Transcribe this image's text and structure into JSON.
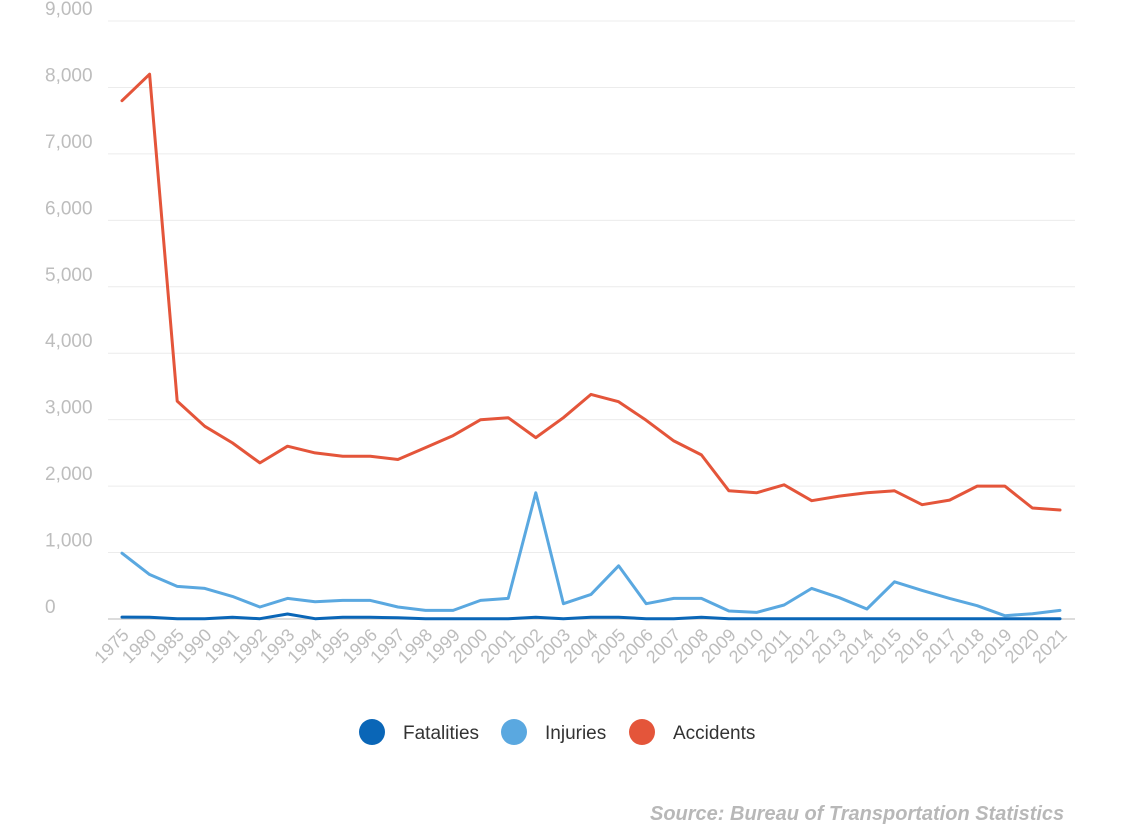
{
  "chart_data": {
    "type": "line",
    "x": [
      "1975",
      "1980",
      "1985",
      "1990",
      "1991",
      "1992",
      "1993",
      "1994",
      "1995",
      "1996",
      "1997",
      "1998",
      "1999",
      "2000",
      "2001",
      "2002",
      "2003",
      "2004",
      "2005",
      "2006",
      "2007",
      "2008",
      "2009",
      "2010",
      "2011",
      "2012",
      "2013",
      "2014",
      "2015",
      "2016",
      "2017",
      "2018",
      "2019",
      "2020",
      "2021"
    ],
    "series": [
      {
        "name": "Fatalities",
        "color": "#0a66b7",
        "values": [
          28,
          25,
          5,
          5,
          25,
          5,
          75,
          5,
          25,
          25,
          20,
          5,
          5,
          5,
          5,
          25,
          5,
          25,
          25,
          5,
          5,
          25,
          5,
          5,
          5,
          5,
          5,
          5,
          5,
          5,
          5,
          5,
          5,
          5,
          5
        ]
      },
      {
        "name": "Injuries",
        "color": "#5aa8e0",
        "values": [
          990,
          670,
          490,
          460,
          340,
          180,
          310,
          260,
          280,
          280,
          180,
          130,
          130,
          280,
          310,
          1900,
          230,
          370,
          800,
          230,
          310,
          310,
          120,
          100,
          210,
          460,
          320,
          150,
          560,
          430,
          310,
          200,
          50,
          80,
          130
        ]
      },
      {
        "name": "Accidents",
        "color": "#e4553a",
        "values": [
          7800,
          8200,
          3280,
          2900,
          2650,
          2350,
          2600,
          2500,
          2450,
          2450,
          2400,
          2580,
          2760,
          3000,
          3030,
          2730,
          3030,
          3380,
          3270,
          2990,
          2680,
          2470,
          1930,
          1900,
          2020,
          1780,
          1850,
          1900,
          1930,
          1720,
          1790,
          2000,
          2000,
          1670,
          1640
        ]
      }
    ],
    "y_ticks": [
      "0",
      "1,000",
      "2,000",
      "3,000",
      "4,000",
      "5,000",
      "6,000",
      "7,000",
      "8,000",
      "9,000"
    ],
    "ylim": [
      0,
      9000
    ],
    "legend_position": "bottom-center",
    "grid": true,
    "source": "Source: Bureau of Transportation Statistics"
  }
}
